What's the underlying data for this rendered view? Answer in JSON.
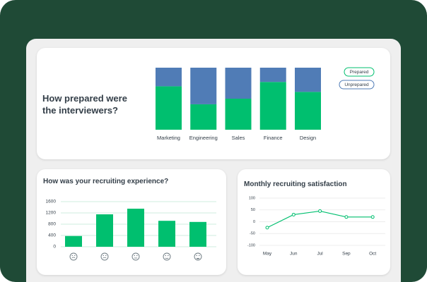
{
  "chart_data": [
    {
      "type": "stacked_bar",
      "title": "How prepared were the interviewers?",
      "categories": [
        "Marketing",
        "Engineering",
        "Sales",
        "Finance",
        "Design"
      ],
      "series": [
        {
          "name": "Prepared",
          "color": "#00bf6f",
          "values": [
            70,
            41,
            50,
            77,
            61
          ]
        },
        {
          "name": "Unprepared",
          "color": "#507cb6",
          "values": [
            30,
            59,
            50,
            23,
            39
          ]
        }
      ]
    },
    {
      "type": "bar",
      "title": "How was your recruiting experience?",
      "categories": [
        null,
        null,
        null,
        null,
        null
      ],
      "values": [
        380,
        1150,
        1350,
        920,
        880
      ],
      "color": "#00bf6f",
      "ylim": [
        0,
        1600
      ],
      "yticks": [
        0,
        400,
        800,
        1200,
        1600
      ],
      "grid": true
    },
    {
      "type": "line",
      "title": "Monthly recruiting satisfaction",
      "categories": [
        "May",
        "Jun",
        "Jul",
        "Sep",
        "Oct"
      ],
      "values": [
        -25,
        30,
        45,
        20,
        20
      ],
      "color": "#00bf6f",
      "ylim": [
        -100,
        100
      ],
      "yticks": [
        -100,
        -50,
        0,
        50,
        100
      ],
      "grid": true
    }
  ]
}
